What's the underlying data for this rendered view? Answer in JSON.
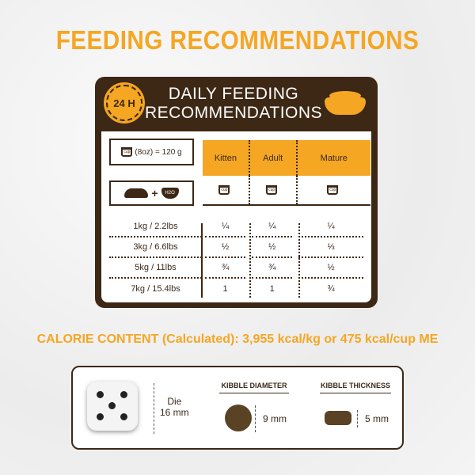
{
  "title": "FEEDING RECOMMENDATIONS",
  "panel": {
    "badge": "24 H",
    "heading_line1": "DAILY FEEDING",
    "heading_line2": "RECOMMENDATIONS",
    "cup_conversion": "(8oz) = 120 g",
    "cup_label": "cup",
    "water_label": "H2O",
    "columns": [
      "Kitten",
      "Adult",
      "Mature"
    ],
    "rows": [
      {
        "weight": "1kg / 2.2lbs",
        "values": [
          "¼",
          "¼",
          "¼"
        ]
      },
      {
        "weight": "3kg / 6.6lbs",
        "values": [
          "½",
          "½",
          "⅓"
        ]
      },
      {
        "weight": "5kg / 11lbs",
        "values": [
          "¾",
          "¾",
          "½"
        ]
      },
      {
        "weight": "7kg / 15.4lbs",
        "values": [
          "1",
          "1",
          "¾"
        ]
      }
    ]
  },
  "calorie": "CALORIE CONTENT (Calculated): 3,955 kcal/kg or 475 kcal/cup ME",
  "sizes": {
    "die_label": "Die",
    "die_size": "16 mm",
    "diameter_title": "KIBBLE DIAMETER",
    "diameter": "9 mm",
    "thickness_title": "KIBBLE THICKNESS",
    "thickness": "5 mm"
  },
  "colors": {
    "accent": "#f5a623",
    "brown": "#3d2815"
  }
}
